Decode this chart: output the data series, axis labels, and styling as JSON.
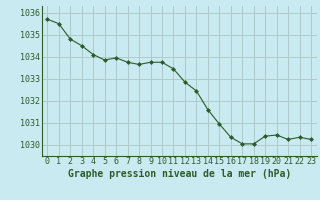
{
  "x": [
    0,
    1,
    2,
    3,
    4,
    5,
    6,
    7,
    8,
    9,
    10,
    11,
    12,
    13,
    14,
    15,
    16,
    17,
    18,
    19,
    20,
    21,
    22,
    23
  ],
  "y": [
    1035.7,
    1035.5,
    1034.8,
    1034.5,
    1034.1,
    1033.85,
    1033.95,
    1033.75,
    1033.65,
    1033.75,
    1033.75,
    1033.45,
    1032.85,
    1032.45,
    1031.6,
    1030.95,
    1030.35,
    1030.05,
    1030.05,
    1030.4,
    1030.45,
    1030.25,
    1030.35,
    1030.25
  ],
  "line_color": "#2d5c28",
  "marker_color": "#2d5c28",
  "bg_color": "#c8eaf0",
  "grid_color": "#b0c8c8",
  "axis_color": "#2d5c28",
  "title": "Graphe pression niveau de la mer (hPa)",
  "ylim_min": 1029.5,
  "ylim_max": 1036.3,
  "yticks": [
    1030,
    1031,
    1032,
    1033,
    1034,
    1035,
    1036
  ],
  "tick_fontsize": 6,
  "title_fontsize": 7,
  "tick_color": "#2d5c28",
  "title_color": "#2d5c28"
}
